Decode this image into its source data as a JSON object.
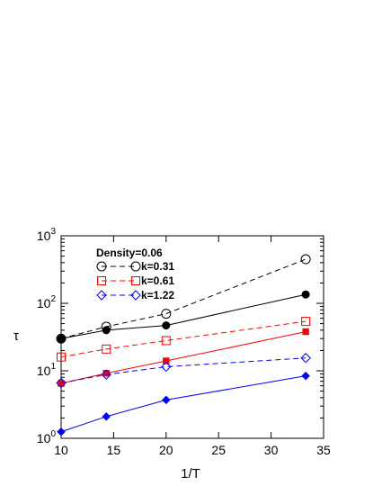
{
  "chart_data": {
    "type": "line",
    "xlabel": "1/T",
    "ylabel": "τ",
    "xlim": [
      10,
      35
    ],
    "ylim": [
      1,
      1000
    ],
    "y_scale": "log",
    "x_ticks": [
      "10",
      "15",
      "20",
      "25",
      "30",
      "35"
    ],
    "y_ticks": [
      {
        "base": "10",
        "exp": "0"
      },
      {
        "base": "10",
        "exp": "1"
      },
      {
        "base": "10",
        "exp": "2"
      },
      {
        "base": "10",
        "exp": "3"
      }
    ],
    "legend": {
      "title": "Density=0.06",
      "placement": "top-left",
      "entries": [
        {
          "label": "k=0.31",
          "color": "#000000",
          "marker": "circle",
          "dash": true
        },
        {
          "label": "k=0.61",
          "color": "#ff0000",
          "marker": "square",
          "dash": true
        },
        {
          "label": "k=1.22",
          "color": "#0000ff",
          "marker": "diamond",
          "dash": true
        }
      ]
    },
    "grid": false,
    "series": [
      {
        "name": "k=0.31",
        "color": "#000000",
        "marker": "circle",
        "filled": false,
        "dashed": true,
        "x": [
          10,
          14.3,
          20,
          33.3
        ],
        "y": [
          30,
          45,
          70,
          450
        ]
      },
      {
        "color": "#000000",
        "marker": "circle",
        "filled": true,
        "dashed": false,
        "x": [
          10,
          14.3,
          20,
          33.3
        ],
        "y": [
          30,
          40,
          47,
          135
        ]
      },
      {
        "name": "k=0.61",
        "color": "#ff0000",
        "marker": "square",
        "filled": false,
        "dashed": true,
        "x": [
          10,
          14.3,
          20,
          33.3
        ],
        "y": [
          16,
          21,
          28,
          54
        ]
      },
      {
        "color": "#ff0000",
        "marker": "square",
        "filled": true,
        "dashed": false,
        "x": [
          10,
          14.3,
          20,
          33.3
        ],
        "y": [
          6.5,
          9.2,
          14,
          38
        ]
      },
      {
        "name": "k=1.22",
        "color": "#0000ff",
        "marker": "diamond",
        "filled": false,
        "dashed": true,
        "x": [
          10,
          14.3,
          20,
          33.3
        ],
        "y": [
          6.6,
          8.8,
          11.5,
          15.5
        ]
      },
      {
        "color": "#0000ff",
        "marker": "diamond",
        "filled": true,
        "dashed": false,
        "x": [
          10,
          14.3,
          20,
          33.3
        ],
        "y": [
          1.25,
          2.1,
          3.7,
          8.4
        ]
      }
    ]
  }
}
